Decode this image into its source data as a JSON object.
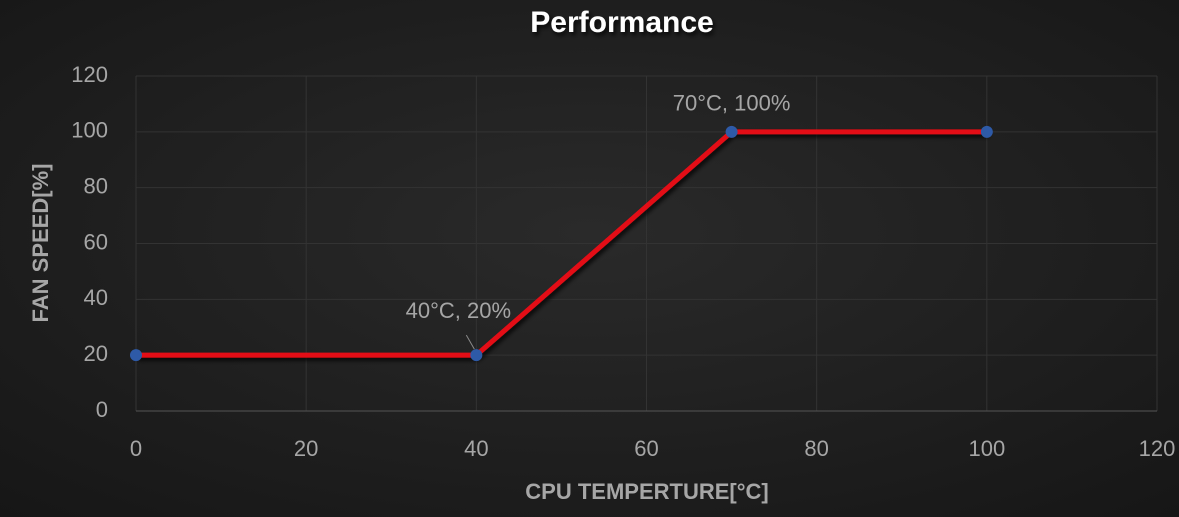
{
  "chart_data": {
    "type": "line",
    "title": "Performance",
    "x_label": "CPU TEMPERTURE[°C]",
    "y_label": "FAN SPEED[%]",
    "x": [
      0,
      40,
      70,
      100
    ],
    "series": [
      {
        "color": "#e30d17",
        "marker_color": "#2e5aa7",
        "values": [
          20,
          20,
          100,
          100
        ]
      }
    ],
    "xlim": [
      0,
      120
    ],
    "xticks": [
      0,
      20,
      40,
      60,
      80,
      100,
      120
    ],
    "ylim": [
      0,
      120
    ],
    "yticks": [
      0,
      20,
      40,
      60,
      80,
      100,
      120
    ],
    "grid": true,
    "annotations": [
      {
        "text": "40°C, 20%",
        "x": 40,
        "y": 20
      },
      {
        "text": "70°C, 100%",
        "x": 70,
        "y": 100
      }
    ]
  }
}
